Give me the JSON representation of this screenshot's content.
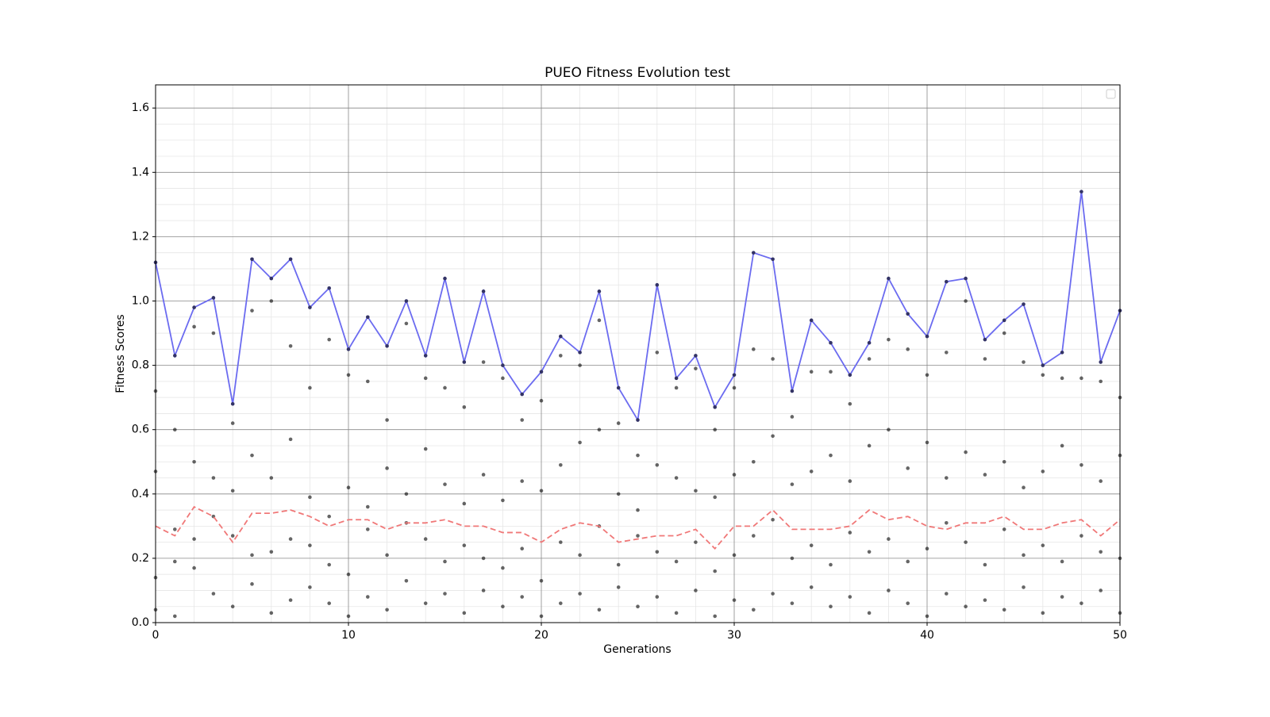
{
  "chart_data": {
    "type": "line",
    "title": "PUEO Fitness Evolution test",
    "xlabel": "Generations",
    "ylabel": "Fitness Scores",
    "xlim": [
      0,
      50
    ],
    "xticks": [
      0,
      10,
      20,
      30,
      40,
      50
    ],
    "ylim": [
      0,
      1.672
    ],
    "yticks": [
      {
        "value": 0,
        "label": "0.0"
      },
      0.2,
      0.4,
      0.6,
      0.8,
      {
        "value": 1,
        "label": "1.0"
      },
      1.2,
      1.4,
      1.6
    ],
    "grid": true,
    "minor_grid": true,
    "x": [
      0,
      1,
      2,
      3,
      4,
      5,
      6,
      7,
      8,
      9,
      10,
      11,
      12,
      13,
      14,
      15,
      16,
      17,
      18,
      19,
      20,
      21,
      22,
      23,
      24,
      25,
      26,
      27,
      28,
      29,
      30,
      31,
      32,
      33,
      34,
      35,
      36,
      37,
      38,
      39,
      40,
      41,
      42,
      43,
      44,
      45,
      46,
      47,
      48,
      49,
      50
    ],
    "series": [
      {
        "kind": "scatter",
        "color": "#000000",
        "values": [
          [
            0.04,
            0.14,
            0.47,
            0.72
          ],
          [
            0.02,
            0.19,
            0.29,
            0.6
          ],
          [
            0.17,
            0.26,
            0.5,
            0.92
          ],
          [
            0.09,
            0.33,
            0.45,
            0.9
          ],
          [
            0.05,
            0.27,
            0.41,
            0.62
          ],
          [
            0.12,
            0.21,
            0.52,
            0.97
          ],
          [
            0.03,
            0.22,
            0.45,
            1.0
          ],
          [
            0.07,
            0.26,
            0.57,
            0.86
          ],
          [
            0.11,
            0.24,
            0.39,
            0.73
          ],
          [
            0.06,
            0.18,
            0.33,
            0.88
          ],
          [
            0.02,
            0.15,
            0.42,
            0.77
          ],
          [
            0.08,
            0.29,
            0.36,
            0.75
          ],
          [
            0.04,
            0.21,
            0.48,
            0.63
          ],
          [
            0.13,
            0.31,
            0.4,
            0.93
          ],
          [
            0.06,
            0.26,
            0.54,
            0.76
          ],
          [
            0.09,
            0.19,
            0.43,
            0.73
          ],
          [
            0.03,
            0.24,
            0.37,
            0.67
          ],
          [
            0.1,
            0.2,
            0.46,
            0.81
          ],
          [
            0.05,
            0.17,
            0.38,
            0.76
          ],
          [
            0.08,
            0.23,
            0.44,
            0.63
          ],
          [
            0.02,
            0.13,
            0.41,
            0.69
          ],
          [
            0.06,
            0.25,
            0.49,
            0.83
          ],
          [
            0.09,
            0.21,
            0.56,
            0.8
          ],
          [
            0.04,
            0.3,
            0.6,
            0.94
          ],
          [
            0.11,
            0.18,
            0.4,
            0.62
          ],
          [
            0.05,
            0.27,
            0.35,
            0.52
          ],
          [
            0.08,
            0.22,
            0.49,
            0.84
          ],
          [
            0.03,
            0.19,
            0.45,
            0.73
          ],
          [
            0.1,
            0.25,
            0.41,
            0.79
          ],
          [
            0.02,
            0.16,
            0.39,
            0.6
          ],
          [
            0.07,
            0.21,
            0.46,
            0.73
          ],
          [
            0.04,
            0.27,
            0.5,
            0.85
          ],
          [
            0.09,
            0.32,
            0.58,
            0.82
          ],
          [
            0.06,
            0.2,
            0.43,
            0.64
          ],
          [
            0.11,
            0.24,
            0.47,
            0.78
          ],
          [
            0.05,
            0.18,
            0.52,
            0.78
          ],
          [
            0.08,
            0.28,
            0.44,
            0.68
          ],
          [
            0.03,
            0.22,
            0.55,
            0.82
          ],
          [
            0.1,
            0.26,
            0.6,
            0.88
          ],
          [
            0.06,
            0.19,
            0.48,
            0.85
          ],
          [
            0.02,
            0.23,
            0.56,
            0.77
          ],
          [
            0.09,
            0.31,
            0.45,
            0.84
          ],
          [
            0.05,
            0.25,
            0.53,
            1.0
          ],
          [
            0.07,
            0.18,
            0.46,
            0.82
          ],
          [
            0.04,
            0.29,
            0.5,
            0.9
          ],
          [
            0.11,
            0.21,
            0.42,
            0.81
          ],
          [
            0.03,
            0.24,
            0.47,
            0.77
          ],
          [
            0.08,
            0.19,
            0.55,
            0.76
          ],
          [
            0.06,
            0.27,
            0.49,
            0.76
          ],
          [
            0.1,
            0.22,
            0.44,
            0.75
          ],
          [
            0.03,
            0.2,
            0.52,
            0.7
          ]
        ]
      },
      {
        "kind": "line",
        "color": "#6b6bf0",
        "markers": true,
        "values": [
          1.12,
          0.83,
          0.98,
          1.01,
          0.68,
          1.13,
          1.07,
          1.13,
          0.98,
          1.04,
          0.85,
          0.95,
          0.86,
          1.0,
          0.83,
          1.07,
          0.81,
          1.03,
          0.8,
          0.71,
          0.78,
          0.89,
          0.84,
          1.03,
          0.73,
          0.63,
          1.05,
          0.76,
          0.83,
          0.67,
          0.77,
          1.15,
          1.13,
          0.72,
          0.94,
          0.87,
          0.77,
          0.87,
          1.07,
          0.96,
          0.89,
          1.06,
          1.07,
          0.88,
          0.94,
          0.99,
          0.8,
          0.84,
          1.34,
          0.81,
          0.97
        ]
      },
      {
        "kind": "line",
        "color": "#f07878",
        "dashed": true,
        "values": [
          0.3,
          0.27,
          0.36,
          0.33,
          0.25,
          0.34,
          0.34,
          0.35,
          0.33,
          0.3,
          0.32,
          0.32,
          0.29,
          0.31,
          0.31,
          0.32,
          0.3,
          0.3,
          0.28,
          0.28,
          0.25,
          0.29,
          0.31,
          0.3,
          0.25,
          0.26,
          0.27,
          0.27,
          0.29,
          0.23,
          0.3,
          0.3,
          0.35,
          0.29,
          0.29,
          0.29,
          0.3,
          0.35,
          0.32,
          0.33,
          0.3,
          0.29,
          0.31,
          0.31,
          0.33,
          0.29,
          0.29,
          0.31,
          0.32,
          0.27,
          0.32
        ]
      }
    ]
  }
}
